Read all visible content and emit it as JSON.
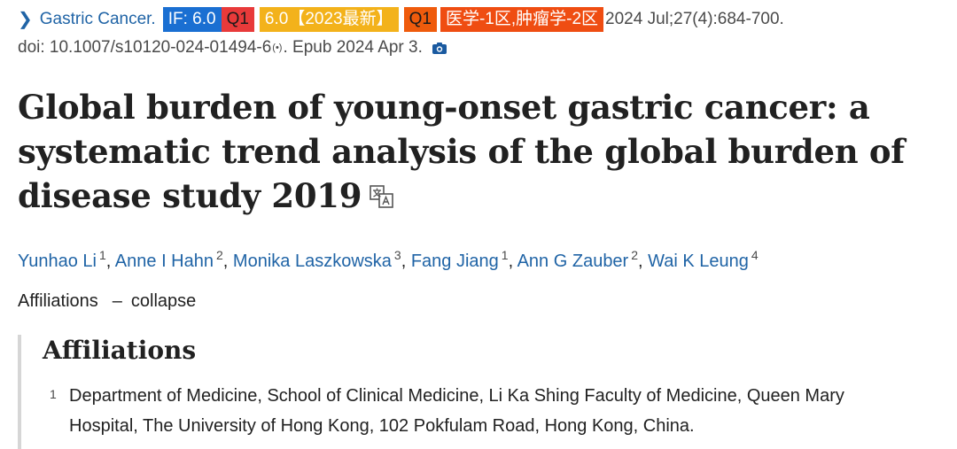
{
  "citation": {
    "journal": "Gastric Cancer.",
    "badges": {
      "impact_factor": "IF: 6.0",
      "quartile_a": "Q1",
      "latest": "6.0【2023最新】",
      "quartile_b": "Q1",
      "zone": "医学-1区,肿瘤学-2区"
    },
    "date_volume": "2024 Jul;27(4):684-700.",
    "doi": "doi: 10.1007/s10120-024-01494-6",
    "epub": ". Epub 2024 Apr 3."
  },
  "title": "Global burden of young-onset gastric cancer: a systematic trend analysis of the global burden of disease study 2019",
  "authors": [
    {
      "name": "Yunhao Li",
      "sup": "1"
    },
    {
      "name": "Anne I Hahn",
      "sup": "2"
    },
    {
      "name": "Monika Laszkowska",
      "sup": "3"
    },
    {
      "name": "Fang Jiang",
      "sup": "1"
    },
    {
      "name": "Ann G Zauber",
      "sup": "2"
    },
    {
      "name": "Wai K Leung",
      "sup": "4"
    }
  ],
  "affiliations_toggle": {
    "label": "Affiliations",
    "action": "collapse"
  },
  "affiliations": {
    "heading": "Affiliations",
    "items": [
      {
        "num": "1",
        "text": "Department of Medicine, School of Clinical Medicine, Li Ka Shing Faculty of Medicine, Queen Mary Hospital, The University of Hong Kong, 102 Pokfulam Road, Hong Kong, China."
      }
    ]
  },
  "icons": {
    "chevron": "chevron-right-icon",
    "doi_radio": "radio-waves-icon",
    "camera": "camera-icon",
    "translate": "translate-icon"
  },
  "colors": {
    "link": "#2064a6",
    "badge_if": "#1a6fd2",
    "badge_q1_red": "#e83a3a",
    "badge_yellow": "#f3b21b",
    "badge_orange": "#ef5b0c",
    "text": "#212121"
  }
}
